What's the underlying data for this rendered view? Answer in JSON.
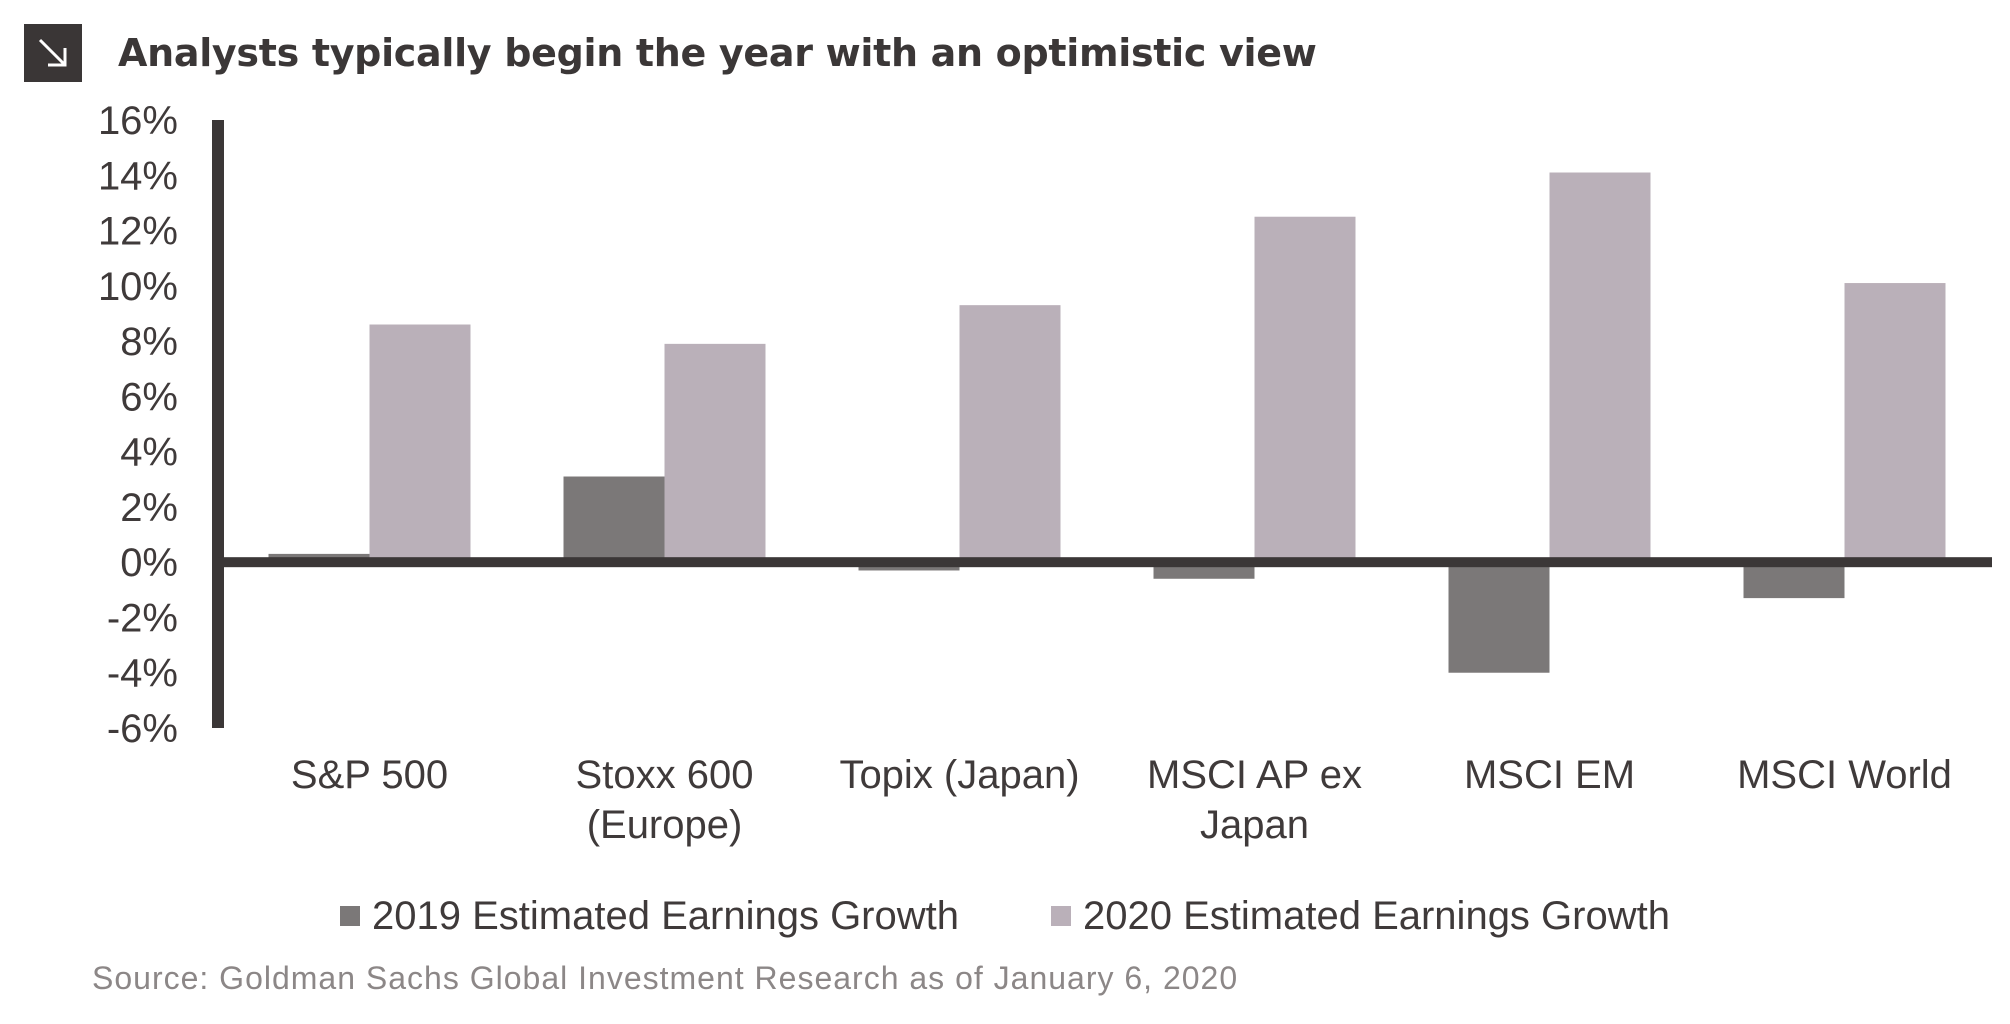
{
  "title": "Analysts typically begin the year with an optimistic view",
  "title_icon": "arrow-down-right-icon",
  "source": "Source: Goldman Sachs Global Investment Research as of January 6, 2020",
  "colors": {
    "series_2019": "#7b7878",
    "series_2020": "#bab0b9",
    "axis": "#3b3737",
    "text": "#3f3a3a",
    "source_text": "#8c8787"
  },
  "chart_data": {
    "type": "bar",
    "title": "Analysts typically begin the year with an optimistic view",
    "categories": [
      [
        "S&P 500"
      ],
      [
        "Stoxx 600",
        "(Europe)"
      ],
      [
        "Topix (Japan)"
      ],
      [
        "MSCI AP ex",
        "Japan"
      ],
      [
        "MSCI EM"
      ],
      [
        "MSCI World"
      ]
    ],
    "series": [
      {
        "name": "2019 Estimated Earnings Growth",
        "values": [
          0.3,
          3.1,
          -0.3,
          -0.6,
          -4.0,
          -1.3
        ]
      },
      {
        "name": "2020 Estimated Earnings Growth",
        "values": [
          8.6,
          7.9,
          9.3,
          12.5,
          14.1,
          10.1
        ]
      }
    ],
    "ylim": [
      -6,
      16
    ],
    "yticks": [
      "16%",
      "14%",
      "12%",
      "10%",
      "8%",
      "6%",
      "4%",
      "2%",
      "0%",
      "-2%",
      "-4%",
      "-6%"
    ],
    "ytick_values": [
      16,
      14,
      12,
      10,
      8,
      6,
      4,
      2,
      0,
      -2,
      -4,
      -6
    ],
    "grid": false,
    "legend_position": "bottom"
  }
}
